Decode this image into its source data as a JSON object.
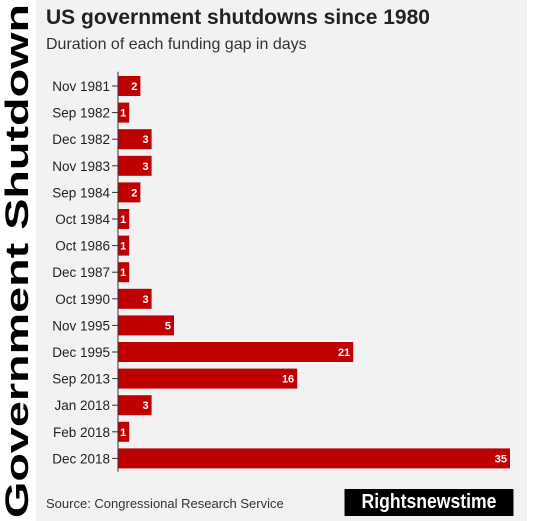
{
  "side_label": "Government Shutdown",
  "header": {
    "title": "US government shutdowns since 1980",
    "subtitle": "Duration of each funding gap in days"
  },
  "footer": {
    "source": "Source: Congressional Research Service",
    "brand": "Rightsnewstime"
  },
  "colors": {
    "bar": "#bf0000",
    "panel": "#f2f2f2",
    "brand_bg": "#000000"
  },
  "chart_data": {
    "type": "bar",
    "orientation": "horizontal",
    "title": "US government shutdowns since 1980",
    "subtitle": "Duration of each funding gap in days",
    "categories": [
      "Nov 1981",
      "Sep 1982",
      "Dec 1982",
      "Nov 1983",
      "Sep 1984",
      "Oct 1984",
      "Oct 1986",
      "Dec 1987",
      "Oct 1990",
      "Nov 1995",
      "Dec 1995",
      "Sep 2013",
      "Jan 2018",
      "Feb 2018",
      "Dec 2018"
    ],
    "values": [
      2,
      1,
      3,
      3,
      2,
      1,
      1,
      1,
      3,
      5,
      21,
      16,
      3,
      1,
      35
    ],
    "data_labels": true,
    "xlim": [
      0,
      35
    ],
    "grid": false,
    "legend": "none"
  }
}
